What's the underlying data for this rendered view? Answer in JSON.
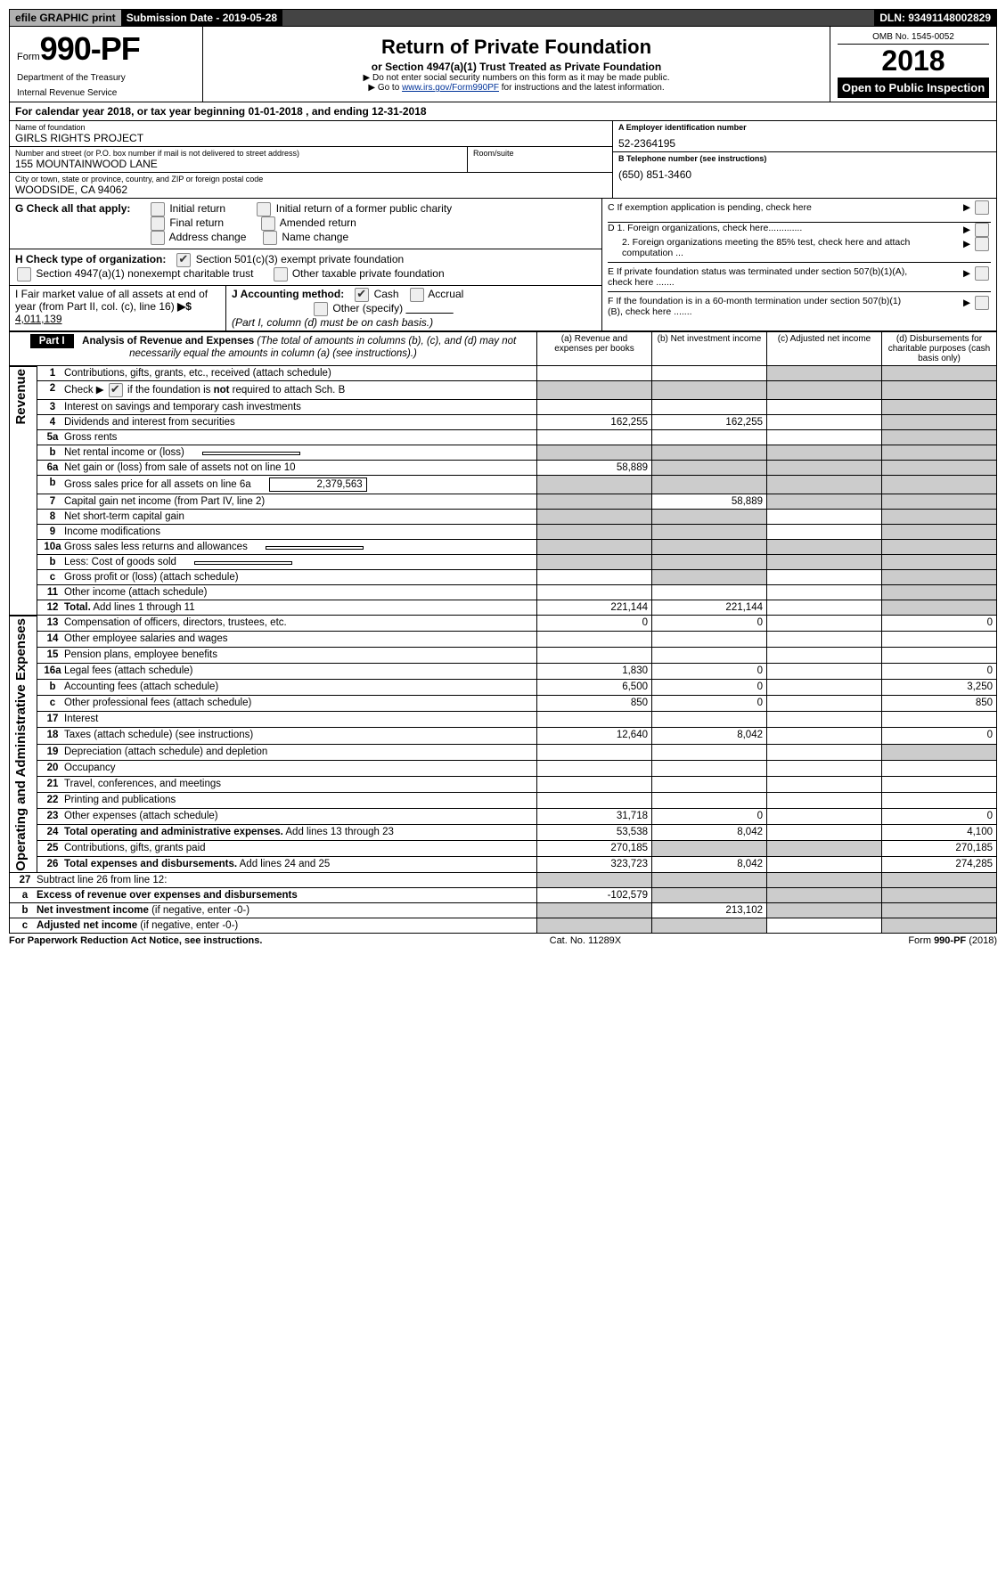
{
  "topbar": {
    "efile": "efile GRAPHIC print",
    "submission": "Submission Date - 2019-05-28",
    "dln": "DLN: 93491148002829"
  },
  "header": {
    "form_prefix": "Form",
    "form_no": "990-PF",
    "dept1": "Department of the Treasury",
    "dept2": "Internal Revenue Service",
    "title": "Return of Private Foundation",
    "subtitle": "or Section 4947(a)(1) Trust Treated as Private Foundation",
    "warn": "▶ Do not enter social security numbers on this form as it may be made public.",
    "goto_pre": "▶ Go to ",
    "goto_link": "www.irs.gov/Form990PF",
    "goto_post": " for instructions and the latest information.",
    "omb": "OMB No. 1545-0052",
    "year": "2018",
    "open": "Open to Public Inspection"
  },
  "cal": "For calendar year 2018, or tax year beginning 01-01-2018                          , and ending 12-31-2018",
  "id": {
    "name_lbl": "Name of foundation",
    "name": "GIRLS RIGHTS PROJECT",
    "addr_lbl": "Number and street (or P.O. box number if mail is not delivered to street address)",
    "addr": "155 MOUNTAINWOOD LANE",
    "room_lbl": "Room/suite",
    "city_lbl": "City or town, state or province, country, and ZIP or foreign postal code",
    "city": "WOODSIDE, CA  94062",
    "a_lbl": "A Employer identification number",
    "a_val": "52-2364195",
    "b_lbl": "B Telephone number (see instructions)",
    "b_val": "(650) 851-3460",
    "c_lbl": "C  If exemption application is pending, check here",
    "d1": "D 1. Foreign organizations, check here.............",
    "d2": "2. Foreign organizations meeting the 85% test, check here and attach computation ...",
    "e": "E  If private foundation status was terminated under section 507(b)(1)(A), check here .......",
    "f": "F  If the foundation is in a 60-month termination under section 507(b)(1)(B), check here ......."
  },
  "g": {
    "lbl": "G Check all that apply:",
    "o1": "Initial return",
    "o2": "Initial return of a former public charity",
    "o3": "Final return",
    "o4": "Amended return",
    "o5": "Address change",
    "o6": "Name change"
  },
  "h": {
    "lbl": "H Check type of organization:",
    "o1": "Section 501(c)(3) exempt private foundation",
    "o2": "Section 4947(a)(1) nonexempt charitable trust",
    "o3": "Other taxable private foundation"
  },
  "i": {
    "lbl": "I Fair market value of all assets at end of year (from Part II, col. (c), line 16)",
    "val": "4,011,139"
  },
  "j": {
    "lbl": "J Accounting method:",
    "o1": "Cash",
    "o2": "Accrual",
    "o3": "Other (specify)",
    "note": "(Part I, column (d) must be on cash basis.)"
  },
  "part1": {
    "label": "Part I",
    "title": "Analysis of Revenue and Expenses",
    "sub": " (The total of amounts in columns (b), (c), and (d) may not necessarily equal the amounts in column (a) (see instructions).)",
    "cols": {
      "a": "(a)    Revenue and expenses per books",
      "b": "(b)    Net investment income",
      "c": "(c)    Adjusted net income",
      "d": "(d)    Disbursements for charitable purposes (cash basis only)"
    }
  },
  "side": {
    "rev": "Revenue",
    "exp": "Operating and Administrative Expenses"
  },
  "rows": [
    {
      "n": "1",
      "d": "Contributions, gifts, grants, etc., received (attach schedule)",
      "a": "",
      "b": "",
      "c": "grey",
      "dd": "grey"
    },
    {
      "n": "2",
      "d": "Check ▶ [x] if the foundation is <b>not</b> required to attach Sch. B",
      "span": true
    },
    {
      "n": "3",
      "d": "Interest on savings and temporary cash investments",
      "a": "",
      "b": "",
      "c": "",
      "dd": "grey"
    },
    {
      "n": "4",
      "d": "Dividends and interest from securities",
      "a": "162,255",
      "b": "162,255",
      "c": "",
      "dd": "grey"
    },
    {
      "n": "5a",
      "d": "Gross rents",
      "a": "",
      "b": "",
      "c": "",
      "dd": "grey"
    },
    {
      "n": "b",
      "d": "Net rental income or (loss)",
      "inline": "",
      "span": true
    },
    {
      "n": "6a",
      "d": "Net gain or (loss) from sale of assets not on line 10",
      "a": "58,889",
      "b": "grey",
      "c": "grey",
      "dd": "grey"
    },
    {
      "n": "b",
      "d": "Gross sales price for all assets on line 6a",
      "inline": "2,379,563",
      "span": true
    },
    {
      "n": "7",
      "d": "Capital gain net income (from Part IV, line 2)",
      "a": "grey",
      "b": "58,889",
      "c": "grey",
      "dd": "grey"
    },
    {
      "n": "8",
      "d": "Net short-term capital gain",
      "a": "grey",
      "b": "grey",
      "c": "",
      "dd": "grey"
    },
    {
      "n": "9",
      "d": "Income modifications",
      "a": "grey",
      "b": "grey",
      "c": "",
      "dd": "grey"
    },
    {
      "n": "10a",
      "d": "Gross sales less returns and allowances",
      "inline": "",
      "span": true
    },
    {
      "n": "b",
      "d": "Less: Cost of goods sold",
      "inline": "",
      "span": true
    },
    {
      "n": "c",
      "d": "Gross profit or (loss) (attach schedule)",
      "a": "",
      "b": "grey",
      "c": "",
      "dd": "grey"
    },
    {
      "n": "11",
      "d": "Other income (attach schedule)",
      "a": "",
      "b": "",
      "c": "",
      "dd": "grey"
    },
    {
      "n": "12",
      "d": "<b>Total.</b> Add lines 1 through 11",
      "a": "221,144",
      "b": "221,144",
      "c": "",
      "dd": "grey"
    }
  ],
  "exprows": [
    {
      "n": "13",
      "d": "Compensation of officers, directors, trustees, etc.",
      "a": "0",
      "b": "0",
      "c": "",
      "dd": "0"
    },
    {
      "n": "14",
      "d": "Other employee salaries and wages",
      "a": "",
      "b": "",
      "c": "",
      "dd": ""
    },
    {
      "n": "15",
      "d": "Pension plans, employee benefits",
      "a": "",
      "b": "",
      "c": "",
      "dd": ""
    },
    {
      "n": "16a",
      "d": "Legal fees (attach schedule)",
      "a": "1,830",
      "b": "0",
      "c": "",
      "dd": "0"
    },
    {
      "n": "b",
      "d": "Accounting fees (attach schedule)",
      "a": "6,500",
      "b": "0",
      "c": "",
      "dd": "3,250"
    },
    {
      "n": "c",
      "d": "Other professional fees (attach schedule)",
      "a": "850",
      "b": "0",
      "c": "",
      "dd": "850"
    },
    {
      "n": "17",
      "d": "Interest",
      "a": "",
      "b": "",
      "c": "",
      "dd": ""
    },
    {
      "n": "18",
      "d": "Taxes (attach schedule) (see instructions)",
      "a": "12,640",
      "b": "8,042",
      "c": "",
      "dd": "0"
    },
    {
      "n": "19",
      "d": "Depreciation (attach schedule) and depletion",
      "a": "",
      "b": "",
      "c": "",
      "dd": "grey"
    },
    {
      "n": "20",
      "d": "Occupancy",
      "a": "",
      "b": "",
      "c": "",
      "dd": ""
    },
    {
      "n": "21",
      "d": "Travel, conferences, and meetings",
      "a": "",
      "b": "",
      "c": "",
      "dd": ""
    },
    {
      "n": "22",
      "d": "Printing and publications",
      "a": "",
      "b": "",
      "c": "",
      "dd": ""
    },
    {
      "n": "23",
      "d": "Other expenses (attach schedule)",
      "a": "31,718",
      "b": "0",
      "c": "",
      "dd": "0"
    },
    {
      "n": "24",
      "d": "<b>Total operating and administrative expenses.</b> Add lines 13 through 23",
      "a": "53,538",
      "b": "8,042",
      "c": "",
      "dd": "4,100"
    },
    {
      "n": "25",
      "d": "Contributions, gifts, grants paid",
      "a": "270,185",
      "b": "grey",
      "c": "grey",
      "dd": "270,185"
    },
    {
      "n": "26",
      "d": "<b>Total expenses and disbursements.</b> Add lines 24 and 25",
      "a": "323,723",
      "b": "8,042",
      "c": "",
      "dd": "274,285"
    }
  ],
  "botrows": [
    {
      "n": "27",
      "d": "Subtract line 26 from line 12:",
      "a": "grey",
      "b": "grey",
      "c": "grey",
      "dd": "grey"
    },
    {
      "n": "a",
      "d": "<b>Excess of revenue over expenses and disbursements</b>",
      "a": "-102,579",
      "b": "grey",
      "c": "grey",
      "dd": "grey"
    },
    {
      "n": "b",
      "d": "<b>Net investment income</b> (if negative, enter -0-)",
      "a": "grey",
      "b": "213,102",
      "c": "grey",
      "dd": "grey"
    },
    {
      "n": "c",
      "d": "<b>Adjusted net income</b> (if negative, enter -0-)",
      "a": "grey",
      "b": "grey",
      "c": "",
      "dd": "grey"
    }
  ],
  "footer": {
    "left": "For Paperwork Reduction Act Notice, see instructions.",
    "mid": "Cat. No. 11289X",
    "right": "Form 990-PF (2018)"
  }
}
